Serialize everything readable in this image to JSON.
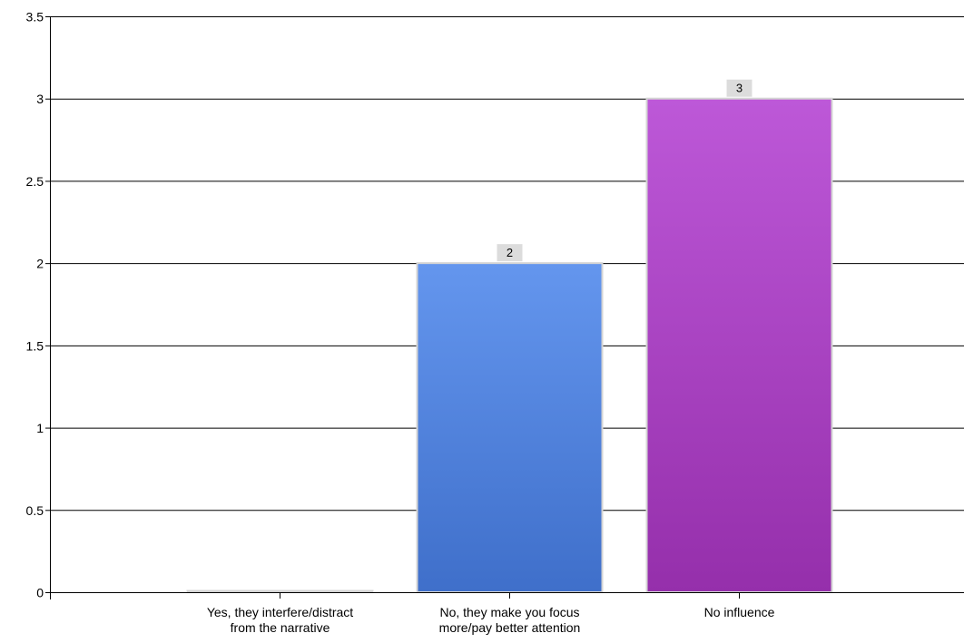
{
  "chart_data": {
    "type": "bar",
    "categories": [
      [
        "Yes, they interfere/distract",
        "from the narrative"
      ],
      [
        "No, they make you focus",
        "more/pay better attention"
      ],
      [
        "No influence"
      ]
    ],
    "values": [
      0,
      2,
      3
    ],
    "data_labels": [
      "",
      "2",
      "3"
    ],
    "ylim": [
      0,
      3.5
    ],
    "yticks": [
      0,
      0.5,
      1,
      1.5,
      2,
      2.5,
      3,
      3.5
    ],
    "ytick_labels": [
      "0",
      "0.5",
      "1",
      "1.5",
      "2",
      "2.5",
      "3",
      "3.5"
    ],
    "grid": true,
    "legend": "none",
    "bar_gradients": [
      [
        "#d8d8d8",
        "#d8d8d8"
      ],
      [
        "#6496ee",
        "#3f6fca"
      ],
      [
        "#bd58d8",
        "#952fab"
      ]
    ],
    "bar_border_color": "#d4d4d4",
    "data_label_bg": "#dcdcdc",
    "gridline_color": "#000000"
  }
}
